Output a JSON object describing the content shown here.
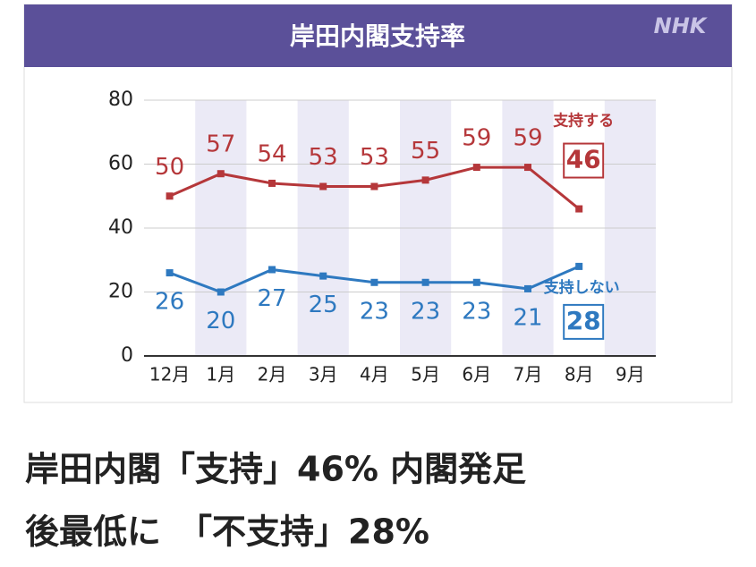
{
  "logo": "NHK",
  "chart_data": {
    "type": "line",
    "title": "岸田内閣支持率",
    "categories": [
      "12月",
      "1月",
      "2月",
      "3月",
      "4月",
      "5月",
      "6月",
      "7月",
      "8月",
      "9月"
    ],
    "series": [
      {
        "name": "支持する",
        "color": "#b5373a",
        "values": [
          50,
          57,
          54,
          53,
          53,
          55,
          59,
          59,
          46,
          null
        ]
      },
      {
        "name": "支持しない",
        "color": "#2e79c0",
        "values": [
          26,
          20,
          27,
          25,
          23,
          23,
          23,
          21,
          28,
          null
        ]
      }
    ],
    "ylim": [
      0,
      80
    ],
    "yticks": [
      0,
      20,
      40,
      60,
      80
    ],
    "grid": true
  },
  "headline": {
    "lines": [
      "岸田内閣「支持」46% 内閣発足",
      "後最低に　「不支持」28%"
    ]
  }
}
